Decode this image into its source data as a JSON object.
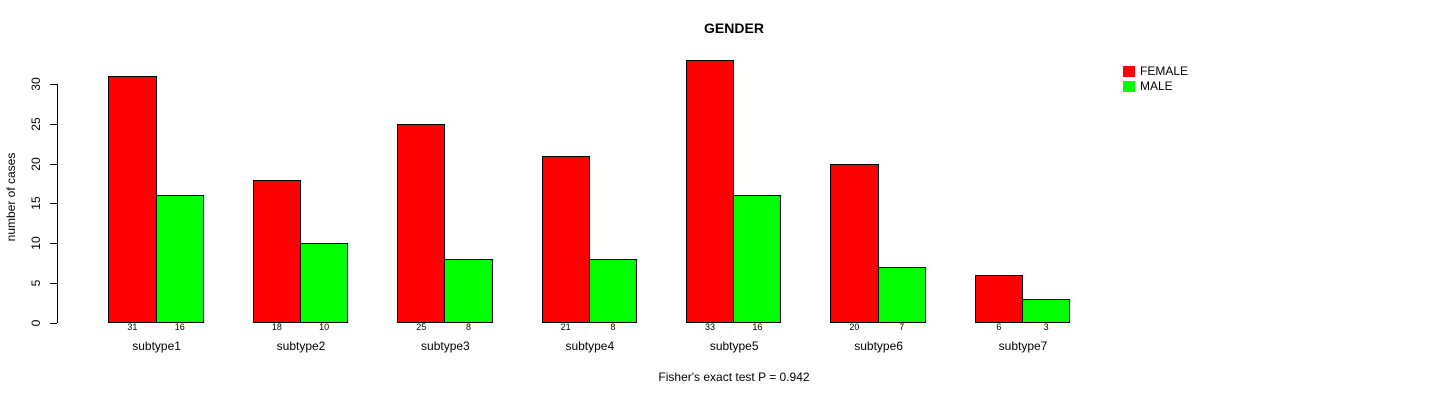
{
  "chart_data": {
    "type": "bar",
    "title": "GENDER",
    "ylabel": "number of cases",
    "xlabel": "",
    "note": "Fisher's exact test P = 0.942",
    "categories": [
      "subtype1",
      "subtype2",
      "subtype3",
      "subtype4",
      "subtype5",
      "subtype6",
      "subtype7"
    ],
    "series": [
      {
        "name": "FEMALE",
        "color": "#FF0000",
        "values": [
          31,
          18,
          25,
          21,
          33,
          20,
          6
        ]
      },
      {
        "name": "MALE",
        "color": "#00FF00",
        "values": [
          16,
          10,
          8,
          8,
          16,
          7,
          3
        ]
      }
    ],
    "yticks": [
      0,
      5,
      10,
      15,
      20,
      25,
      30
    ],
    "ylim": [
      0,
      33
    ],
    "bar_value_labels": true,
    "grid": false,
    "legend_position": "top-right-outside",
    "background_color": "#FFFFFF",
    "text_color": "#000000"
  }
}
